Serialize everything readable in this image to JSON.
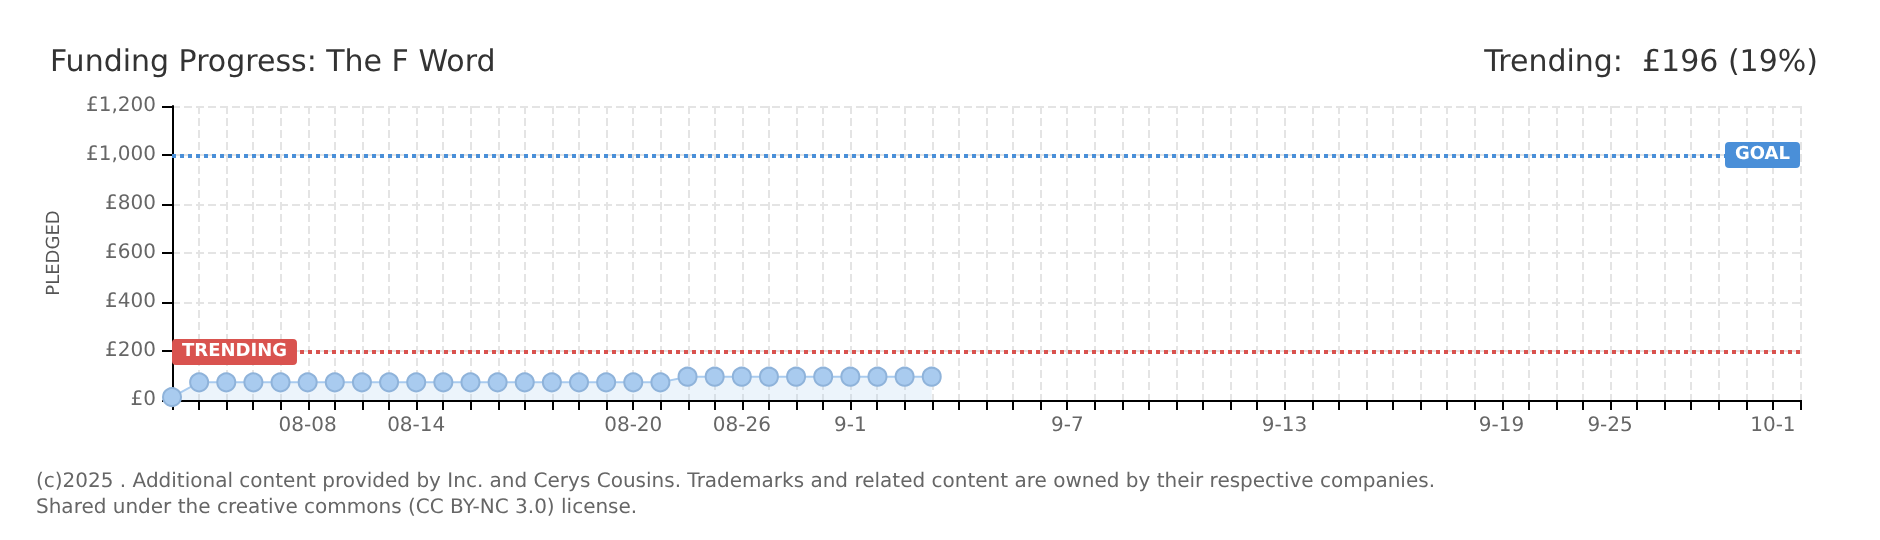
{
  "chart_data": {
    "type": "area",
    "title": "Funding Progress: The F Word",
    "subtitle": "Trending:  £196 (19%)",
    "ylabel": "PLEDGED",
    "categories": [
      null,
      null,
      null,
      null,
      null,
      "08-08",
      null,
      null,
      null,
      "08-14",
      null,
      null,
      null,
      null,
      null,
      null,
      null,
      "08-20",
      null,
      null,
      null,
      "08-26",
      null,
      null,
      null,
      "9-1",
      null,
      null,
      null,
      null,
      null,
      null,
      null,
      "9-7",
      null,
      null,
      null,
      null,
      null,
      null,
      null,
      "9-13",
      null,
      null,
      null,
      null,
      null,
      null,
      null,
      "9-19",
      null,
      null,
      null,
      "9-25",
      null,
      null,
      null,
      null,
      null,
      "10-1",
      null
    ],
    "series": [
      {
        "color": "#a9cbef",
        "values": [
          12,
          72,
          72,
          72,
          72,
          72,
          72,
          72,
          72,
          72,
          72,
          72,
          72,
          72,
          72,
          72,
          72,
          72,
          72,
          95,
          95,
          95,
          95,
          95,
          95,
          95,
          95,
          95,
          95,
          null,
          null,
          null,
          null,
          null,
          null,
          null,
          null,
          null,
          null,
          null,
          null,
          null,
          null,
          null,
          null,
          null,
          null,
          null,
          null,
          null,
          null,
          null,
          null,
          null,
          null,
          null,
          null,
          null,
          null,
          null,
          null
        ]
      }
    ],
    "ylim": [
      0,
      1200
    ],
    "yticks": [
      {
        "value": 0,
        "label": "£0"
      },
      {
        "value": 200,
        "label": "£200"
      },
      {
        "value": 400,
        "label": "£400"
      },
      {
        "value": 600,
        "label": "£600"
      },
      {
        "value": 800,
        "label": "£800"
      },
      {
        "value": 1000,
        "label": "£1,000"
      },
      {
        "value": 1200,
        "label": "£1,200"
      }
    ],
    "ref_lines": [
      {
        "axis": "y",
        "value": 1000,
        "label": "GOAL",
        "color": "#4a8fd8",
        "line_style": "dotted"
      },
      {
        "axis": "y",
        "value": 196,
        "label": "TRENDING",
        "color": "#d9534f",
        "line_style": "dotted"
      }
    ],
    "grid": true,
    "marker": "circle",
    "line_style": "solid",
    "annotations": [
      "(c)2025 . Additional content provided by Inc. and Cerys Cousins. Trademarks and related content are owned by their respective companies.",
      "Shared under the creative commons (CC BY-NC 3.0) license."
    ]
  }
}
